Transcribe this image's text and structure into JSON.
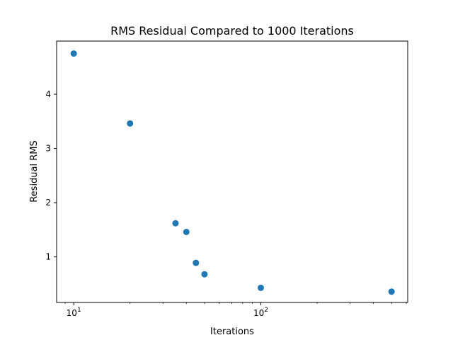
{
  "chart_data": {
    "type": "scatter",
    "title": "RMS Residual Compared to 1000 Iterations",
    "xlabel": "Iterations",
    "ylabel": "Residual RMS",
    "xscale": "log",
    "xlim": [
      8.1,
      610
    ],
    "ylim": [
      0.16,
      4.98
    ],
    "x_ticks": [
      {
        "value": 10,
        "base": "10",
        "exp": "1"
      },
      {
        "value": 100,
        "base": "10",
        "exp": "2"
      }
    ],
    "y_ticks": [
      {
        "value": 1,
        "label": "1"
      },
      {
        "value": 2,
        "label": "2"
      },
      {
        "value": 3,
        "label": "3"
      },
      {
        "value": 4,
        "label": "4"
      }
    ],
    "grid": false,
    "marker_color": "#1f77b4",
    "points": [
      {
        "x": 10,
        "y": 4.75
      },
      {
        "x": 20,
        "y": 3.46
      },
      {
        "x": 35,
        "y": 1.62
      },
      {
        "x": 40,
        "y": 1.46
      },
      {
        "x": 45,
        "y": 0.89
      },
      {
        "x": 50,
        "y": 0.68
      },
      {
        "x": 100,
        "y": 0.43
      },
      {
        "x": 500,
        "y": 0.36
      }
    ]
  }
}
